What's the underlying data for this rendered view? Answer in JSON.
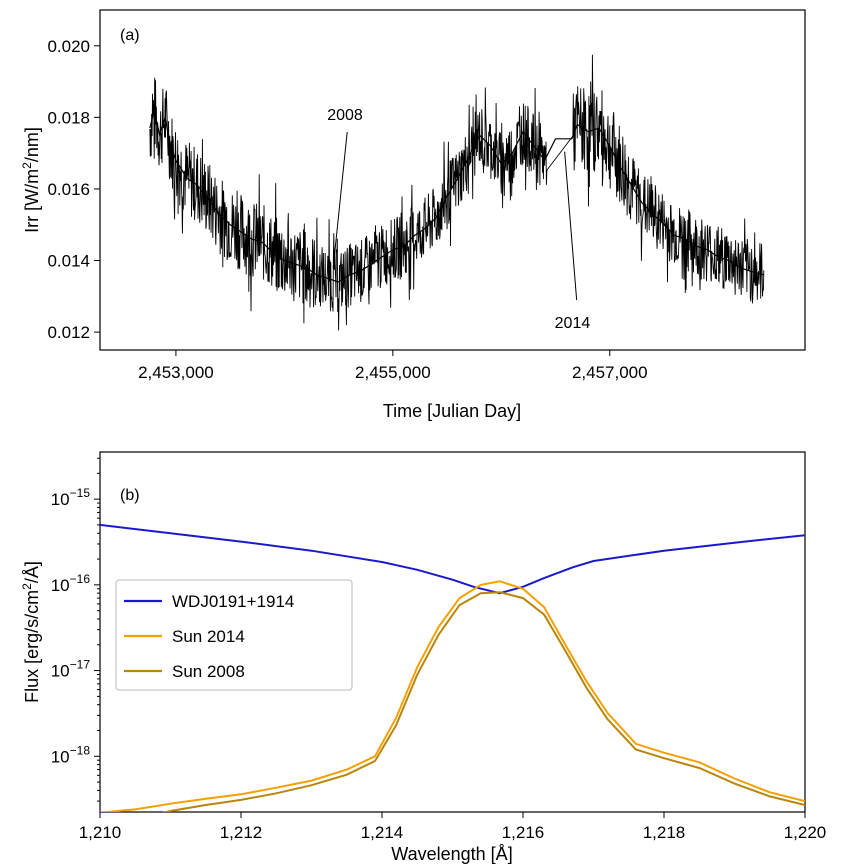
{
  "chart_data": [
    {
      "type": "line",
      "panel_label": "(a)",
      "xlabel": "Time [Julian Day]",
      "ylabel_prefix": "Irr [W/m",
      "ylabel_sup": "2",
      "ylabel_suffix": "/nm]",
      "xlim": [
        2452300,
        2458800
      ],
      "ylim": [
        0.0115,
        0.021
      ],
      "xticks": [
        2453000,
        2455000,
        2457000
      ],
      "xtick_labels": [
        "2,453,000",
        "2,455,000",
        "2,457,000"
      ],
      "yticks": [
        0.012,
        0.014,
        0.016,
        0.018,
        0.02
      ],
      "ytick_labels": [
        "0.012",
        "0.014",
        "0.016",
        "0.018",
        "0.020"
      ],
      "series": [
        {
          "color": "#000000",
          "x": [
            2452760,
            2452800,
            2452850,
            2452900,
            2452950,
            2453000,
            2453100,
            2453200,
            2453300,
            2453400,
            2453500,
            2453600,
            2453700,
            2453800,
            2453900,
            2454000,
            2454100,
            2454200,
            2454300,
            2454400,
            2454500,
            2454600,
            2454700,
            2454800,
            2454900,
            2455000,
            2455100,
            2455200,
            2455300,
            2455400,
            2455500,
            2455600,
            2455700,
            2455800,
            2455900,
            2456000,
            2456100,
            2456200,
            2456300,
            2456400,
            2456500,
            2456650,
            2456700,
            2456800,
            2456900,
            2457000,
            2457100,
            2457200,
            2457300,
            2457400,
            2457500,
            2457600,
            2457700,
            2457800,
            2457900,
            2458000,
            2458100,
            2458200,
            2458300,
            2458420
          ],
          "values": [
            0.0177,
            0.0182,
            0.0175,
            0.018,
            0.0172,
            0.0168,
            0.0163,
            0.0161,
            0.0157,
            0.0153,
            0.015,
            0.0148,
            0.0146,
            0.0145,
            0.0142,
            0.014,
            0.0139,
            0.0138,
            0.0136,
            0.0135,
            0.0134,
            0.0136,
            0.0137,
            0.0139,
            0.0141,
            0.0143,
            0.0144,
            0.0147,
            0.0149,
            0.0152,
            0.0158,
            0.0163,
            0.0169,
            0.0175,
            0.0172,
            0.0167,
            0.017,
            0.0176,
            0.0172,
            0.0168,
            0.0174,
            0.0174,
            0.0178,
            0.0176,
            0.0177,
            0.0172,
            0.0166,
            0.0161,
            0.0156,
            0.0153,
            0.015,
            0.0147,
            0.0146,
            0.0144,
            0.0143,
            0.0141,
            0.014,
            0.0138,
            0.0137,
            0.0136
          ]
        }
      ],
      "annotations": [
        {
          "text": "2008",
          "x": 2454450,
          "y": 0.0138
        },
        {
          "text": "2014",
          "x": 2456750,
          "y": 0.0176
        }
      ]
    },
    {
      "type": "line",
      "panel_label": "(b)",
      "xlabel": "Wavelength [Å]",
      "ylabel_prefix": "Flux [erg/s/cm",
      "ylabel_sup": "2",
      "ylabel_suffix": "/Å]",
      "y_scale": "log",
      "xlim": [
        1210,
        1220
      ],
      "ylim_exponent": [
        -18.65,
        -14.45
      ],
      "xticks": [
        1210,
        1212,
        1214,
        1216,
        1218,
        1220
      ],
      "xtick_labels": [
        "1,210",
        "1,212",
        "1,214",
        "1,216",
        "1,218",
        "1,220"
      ],
      "ytick_exponents": [
        -18,
        -17,
        -16,
        -15
      ],
      "ytick_base": "10",
      "ytick_exp_labels": [
        "−18",
        "−17",
        "−16",
        "−15"
      ],
      "legend": {
        "position": "middle-left",
        "entries": [
          "WDJ0191+1914",
          "Sun 2014",
          "Sun 2008"
        ]
      },
      "series": [
        {
          "name": "WDJ0191+1914",
          "color": "#1a1acc",
          "x": [
            1210,
            1211,
            1212,
            1213,
            1214,
            1214.5,
            1215,
            1215.3,
            1215.67,
            1216,
            1216.3,
            1216.7,
            1217,
            1218,
            1219,
            1220
          ],
          "values": [
            5e-16,
            4e-16,
            3.2e-16,
            2.5e-16,
            1.85e-16,
            1.5e-16,
            1.15e-16,
            9.5e-17,
            8e-17,
            9.5e-17,
            1.2e-16,
            1.6e-16,
            1.9e-16,
            2.5e-16,
            3.1e-16,
            3.8e-16
          ]
        },
        {
          "name": "Sun 2014",
          "color": "#f5a000",
          "x": [
            1210,
            1210.5,
            1211,
            1211.5,
            1212,
            1212.5,
            1213,
            1213.5,
            1213.9,
            1214.2,
            1214.5,
            1214.8,
            1215.1,
            1215.4,
            1215.67,
            1216,
            1216.3,
            1216.6,
            1216.9,
            1217.2,
            1217.6,
            1218,
            1218.5,
            1219,
            1219.5,
            1220
          ],
          "values": [
            2.2e-19,
            2.4e-19,
            2.8e-19,
            3.2e-19,
            3.6e-19,
            4.3e-19,
            5.2e-19,
            7e-19,
            1e-18,
            2.8e-18,
            1.1e-17,
            3.2e-17,
            7e-17,
            1e-16,
            1.1e-16,
            9e-17,
            5.5e-17,
            2e-17,
            7.5e-18,
            3.2e-18,
            1.4e-18,
            1.1e-18,
            8.5e-19,
            5.5e-19,
            3.8e-19,
            3e-19
          ]
        },
        {
          "name": "Sun 2008",
          "color": "#b8860b",
          "x": [
            1210.8,
            1211,
            1211.5,
            1212,
            1212.5,
            1213,
            1213.5,
            1213.9,
            1214.2,
            1214.5,
            1214.8,
            1215.1,
            1215.4,
            1215.67,
            1216,
            1216.3,
            1216.6,
            1216.9,
            1217.2,
            1217.6,
            1218,
            1218.5,
            1219,
            1219.5,
            1220
          ],
          "values": [
            2.1e-19,
            2.3e-19,
            2.7e-19,
            3.1e-19,
            3.7e-19,
            4.6e-19,
            6.1e-19,
            8.8e-19,
            2.3e-18,
            9e-18,
            2.6e-17,
            5.8e-17,
            8e-17,
            8.2e-17,
            7e-17,
            4.5e-17,
            1.7e-17,
            6.3e-18,
            2.7e-18,
            1.2e-18,
            9.5e-19,
            7.3e-19,
            4.8e-19,
            3.4e-19,
            2.7e-19
          ]
        }
      ]
    }
  ]
}
